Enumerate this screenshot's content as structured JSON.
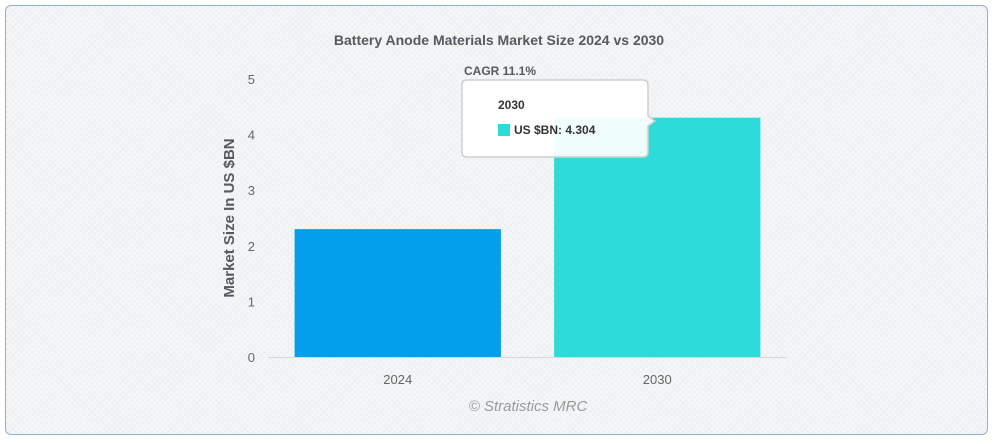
{
  "chart_data": {
    "type": "bar",
    "title": "Battery Anode Materials Market Size 2024 vs 2030",
    "annotation": "CAGR 11.1%",
    "categories": [
      "2024",
      "2030"
    ],
    "values": [
      2.3,
      4.304
    ],
    "colors": [
      "#039fed",
      "#2ddbd9"
    ],
    "xlabel": "",
    "ylabel": "Market Size In US $BN",
    "ylim": [
      0,
      5
    ],
    "yticks": [
      "0",
      "1",
      "2",
      "3",
      "4",
      "5"
    ],
    "grid": false,
    "legend": "none"
  },
  "tooltip": {
    "title": "2030",
    "label": "US $BN: 4.304",
    "swatch_color": "#2ddbd9"
  },
  "credit": "© Stratistics MRC"
}
